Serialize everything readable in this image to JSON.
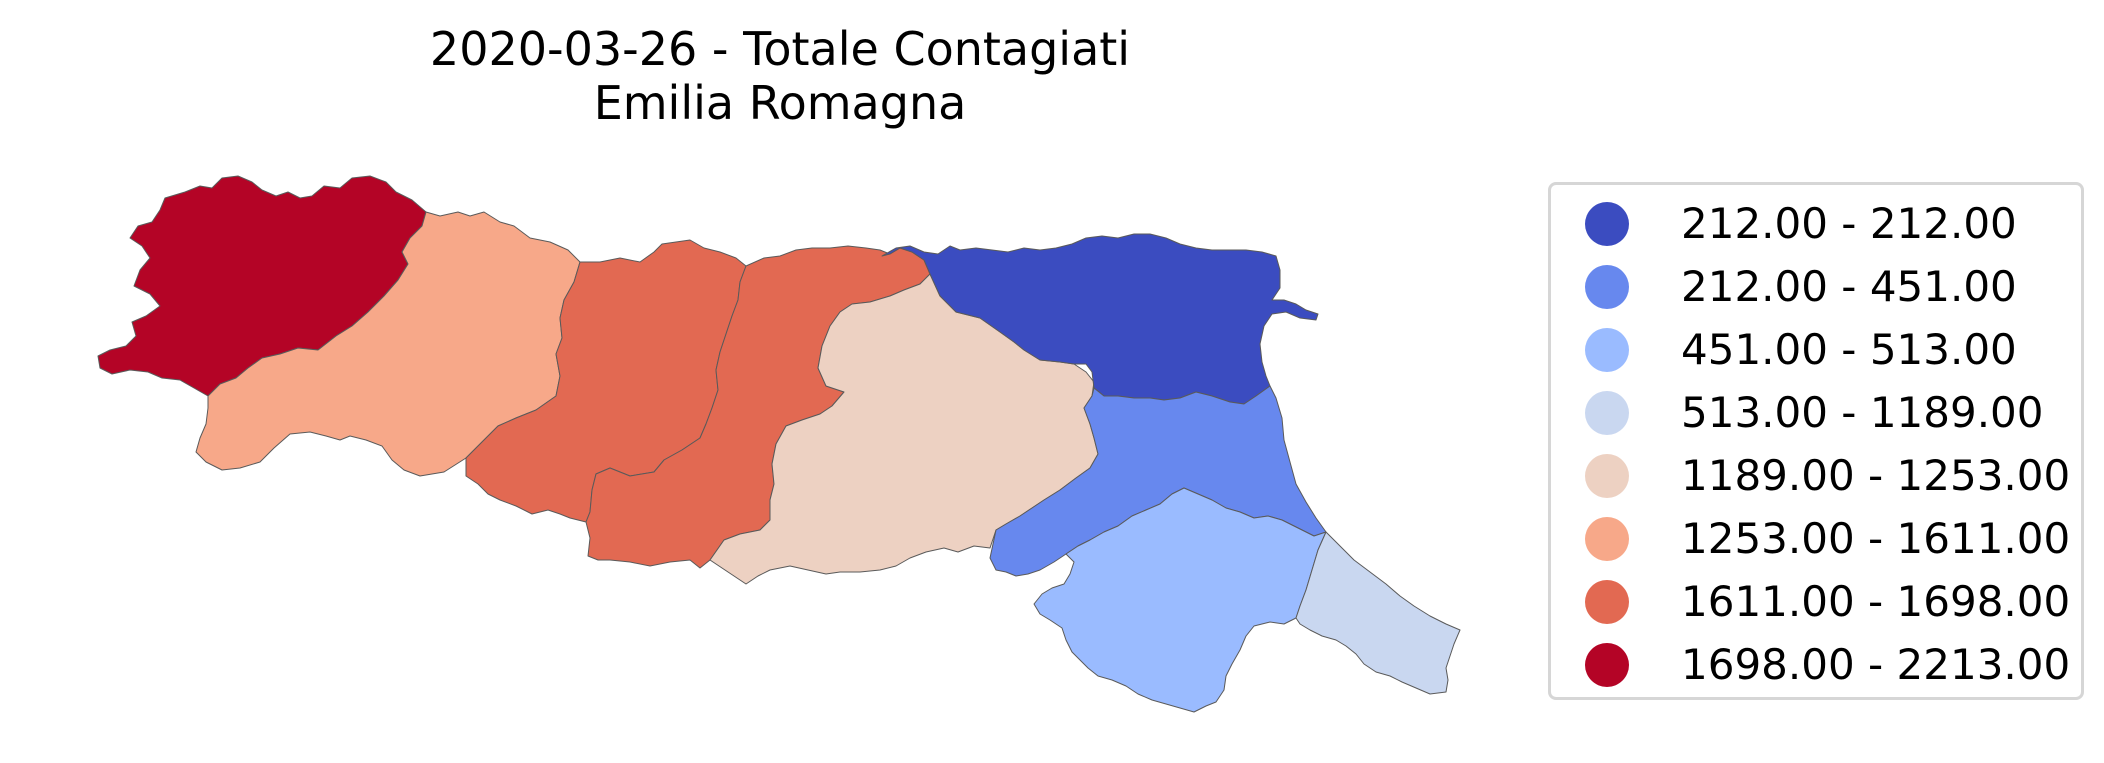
{
  "title": {
    "line1": "2020-03-26 - Totale Contagiati",
    "line2": "Emilia Romagna"
  },
  "legend": {
    "items": [
      {
        "label": "212.00 - 212.00",
        "color": "#3b4cc0"
      },
      {
        "label": "212.00 - 451.00",
        "color": "#6788ee"
      },
      {
        "label": "451.00 - 513.00",
        "color": "#9abbff"
      },
      {
        "label": "513.00 - 1189.00",
        "color": "#c9d7f0"
      },
      {
        "label": "1189.00 - 1253.00",
        "color": "#edd1c2"
      },
      {
        "label": "1253.00 - 1611.00",
        "color": "#f7a889"
      },
      {
        "label": "1611.00 - 1698.00",
        "color": "#e26952"
      },
      {
        "label": "1698.00 - 2213.00",
        "color": "#b40426"
      }
    ]
  },
  "provinces": [
    {
      "id": "piacenza",
      "color": "#b40426"
    },
    {
      "id": "parma",
      "color": "#f7a889"
    },
    {
      "id": "reggio-emilia",
      "color": "#e26952"
    },
    {
      "id": "modena",
      "color": "#e26952"
    },
    {
      "id": "bologna",
      "color": "#edd1c2"
    },
    {
      "id": "ferrara",
      "color": "#3b4cc0"
    },
    {
      "id": "ravenna",
      "color": "#6788ee"
    },
    {
      "id": "forli-cesena",
      "color": "#9abbff"
    },
    {
      "id": "rimini",
      "color": "#c9d7f0"
    }
  ]
}
